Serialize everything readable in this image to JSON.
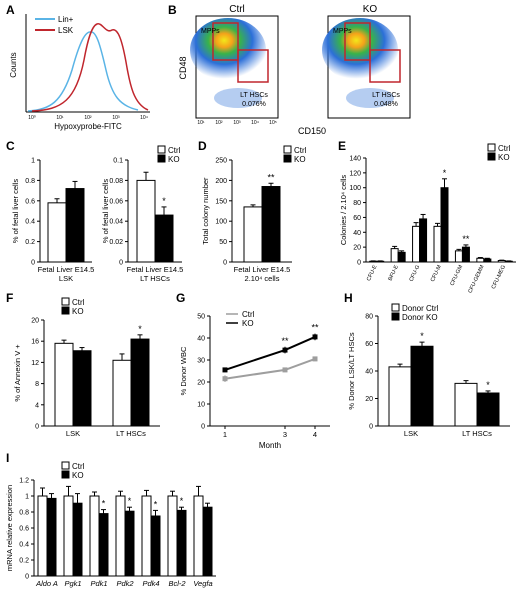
{
  "panels": {
    "A": {
      "letter": "A",
      "legend": [
        "Lin+",
        "LSK"
      ],
      "colors": {
        "Lin+": "#5ab4e6",
        "LSK": "#c0262d"
      },
      "ylabel": "Counts",
      "xlabel": "Hypoxyprobe-FITC",
      "ticks": [
        "10⁰",
        "10¹",
        "10²",
        "10³",
        "10⁴"
      ]
    },
    "B": {
      "letter": "B",
      "plots": [
        {
          "title": "Ctrl",
          "gate_mpp": "MPPs",
          "gate_lt": "LT HSCs",
          "lt_pct": "0.076%"
        },
        {
          "title": "KO",
          "gate_mpp": "MPPs",
          "gate_lt": "LT HSCs",
          "lt_pct": "0.048%"
        }
      ],
      "ylabel": "CD48",
      "xlabel": "CD150",
      "ticks": [
        "10¹",
        "10²",
        "10³",
        "10⁴",
        "10⁵"
      ]
    },
    "C": {
      "letter": "C"
    },
    "D": {
      "letter": "D"
    },
    "E": {
      "letter": "E"
    },
    "F": {
      "letter": "F"
    },
    "G": {
      "letter": "G"
    },
    "H": {
      "letter": "H"
    },
    "I": {
      "letter": "I"
    }
  },
  "chart_data": [
    {
      "id": "C1",
      "type": "bar",
      "categories": [
        "Fetal Liver E14.5"
      ],
      "sublabel": "LSK",
      "series": [
        {
          "name": "Ctrl",
          "values": [
            0.58
          ]
        },
        {
          "name": "KO",
          "values": [
            0.72
          ]
        }
      ],
      "errors": [
        [
          0.04
        ],
        [
          0.07
        ]
      ],
      "ylabel": "% of fetal liver cells",
      "ylim": [
        0,
        1
      ],
      "yticks": [
        "0",
        "0.2",
        "0.4",
        "0.6",
        "0.8",
        "1"
      ]
    },
    {
      "id": "C2",
      "type": "bar",
      "categories": [
        "Fetal Liver E14.5"
      ],
      "sublabel": "LT HSCs",
      "series": [
        {
          "name": "Ctrl",
          "values": [
            0.08
          ]
        },
        {
          "name": "KO",
          "values": [
            0.046
          ]
        }
      ],
      "errors": [
        [
          0.008
        ],
        [
          0.008
        ]
      ],
      "significance": [
        [
          ""
        ],
        [
          "*"
        ]
      ],
      "legend": [
        "Ctrl",
        "KO"
      ],
      "ylabel": "% of fetal liver cells",
      "ylim": [
        0,
        0.1
      ],
      "yticks": [
        "0",
        "0.02",
        "0.04",
        "0.06",
        "0.08",
        "0.1"
      ]
    },
    {
      "id": "D",
      "type": "bar",
      "categories": [
        "Fetal Liver E14.5"
      ],
      "sublabel": "2.10⁴ cells",
      "series": [
        {
          "name": "Ctrl",
          "values": [
            135
          ]
        },
        {
          "name": "KO",
          "values": [
            185
          ]
        }
      ],
      "errors": [
        [
          5
        ],
        [
          8
        ]
      ],
      "significance": [
        [
          ""
        ],
        [
          "**"
        ]
      ],
      "legend": [
        "Ctrl",
        "KO"
      ],
      "ylabel": "Total colony number",
      "ylim": [
        0,
        250
      ],
      "yticks": [
        "0",
        "50",
        "100",
        "150",
        "200",
        "250"
      ]
    },
    {
      "id": "E",
      "type": "bar",
      "categories": [
        "CFU-E",
        "BFU-E",
        "CFU-G",
        "CFU-M",
        "CFU-GM",
        "CFU-GEMM",
        "CFU-MEG"
      ],
      "series": [
        {
          "name": "Ctrl",
          "values": [
            1,
            18,
            48,
            48,
            15,
            5,
            2
          ]
        },
        {
          "name": "KO",
          "values": [
            1,
            13,
            58,
            100,
            20,
            4,
            1
          ]
        }
      ],
      "errors": [
        [
          0.5,
          3,
          5,
          4,
          2,
          1,
          0.5
        ],
        [
          0.5,
          2,
          6,
          12,
          3,
          1,
          0.5
        ]
      ],
      "significance": [
        [
          "",
          "",
          "",
          "",
          "",
          "",
          ""
        ],
        [
          "",
          "",
          "",
          "*",
          "**",
          "",
          ""
        ]
      ],
      "legend": [
        "Ctrl",
        "KO"
      ],
      "ylabel": "Colonies / 2.10⁴ cells",
      "ylim": [
        0,
        140
      ],
      "yticks": [
        "0",
        "20",
        "40",
        "60",
        "80",
        "100",
        "120",
        "140"
      ]
    },
    {
      "id": "F",
      "type": "bar",
      "categories": [
        "LSK",
        "LT HSCs"
      ],
      "series": [
        {
          "name": "Ctrl",
          "values": [
            15.6,
            12.4
          ]
        },
        {
          "name": "KO",
          "values": [
            14.2,
            16.4
          ]
        }
      ],
      "errors": [
        [
          0.6,
          1.2
        ],
        [
          0.6,
          0.8
        ]
      ],
      "significance": [
        [
          "",
          ""
        ],
        [
          "",
          "*"
        ]
      ],
      "legend": [
        "Ctrl",
        "KO"
      ],
      "ylabel": "% of Annexin V +",
      "ylim": [
        0,
        20
      ],
      "yticks": [
        "0",
        "4",
        "8",
        "12",
        "16",
        "20"
      ]
    },
    {
      "id": "G",
      "type": "line",
      "x": [
        1,
        3,
        4
      ],
      "series": [
        {
          "name": "Ctrl",
          "values": [
            21.5,
            25.5,
            30.5
          ],
          "color": "#9e9e9e"
        },
        {
          "name": "KO",
          "values": [
            25.5,
            34.5,
            40.5
          ],
          "color": "#000000"
        }
      ],
      "errors": [
        [
          1.5,
          1,
          1
        ],
        [
          1,
          1.5,
          1.5
        ]
      ],
      "significance": [
        [
          "",
          "",
          ""
        ],
        [
          "",
          "**",
          "**"
        ]
      ],
      "legend": [
        "Ctrl",
        "KO"
      ],
      "xlabel": "Month",
      "xticks": [
        "1",
        "3",
        "4"
      ],
      "ylabel": "% Donor WBC",
      "ylim": [
        0,
        50
      ],
      "yticks": [
        "0",
        "10",
        "20",
        "30",
        "40",
        "50"
      ]
    },
    {
      "id": "H",
      "type": "bar",
      "categories": [
        "LSK",
        "LT HSCs"
      ],
      "series": [
        {
          "name": "Donor Ctrl",
          "values": [
            43,
            31
          ]
        },
        {
          "name": "Donor KO",
          "values": [
            58,
            24
          ]
        }
      ],
      "errors": [
        [
          2,
          2
        ],
        [
          3,
          1.5
        ]
      ],
      "significance": [
        [
          "",
          ""
        ],
        [
          "*",
          "*"
        ]
      ],
      "legend": [
        "Donor Ctrl",
        "Donor KO"
      ],
      "ylabel": "% Donor LSK/LT HSCs",
      "ylim": [
        0,
        80
      ],
      "yticks": [
        "0",
        "20",
        "40",
        "60",
        "80"
      ]
    },
    {
      "id": "I",
      "type": "bar",
      "categories": [
        "Aldo A",
        "Pgk1",
        "Pdk1",
        "Pdk2",
        "Pdk4",
        "Bcl-2",
        "Vegfa"
      ],
      "series": [
        {
          "name": "Ctrl",
          "values": [
            1.0,
            1.0,
            1.0,
            1.0,
            1.0,
            1.0,
            1.0
          ]
        },
        {
          "name": "KO",
          "values": [
            0.97,
            0.91,
            0.78,
            0.81,
            0.75,
            0.82,
            0.86
          ]
        }
      ],
      "errors": [
        [
          0.1,
          0.12,
          0.05,
          0.06,
          0.07,
          0.06,
          0.12
        ],
        [
          0.06,
          0.12,
          0.05,
          0.05,
          0.07,
          0.04,
          0.05
        ]
      ],
      "significance": [
        [
          "",
          "",
          "",
          "",
          "",
          "",
          ""
        ],
        [
          "",
          "",
          "*",
          "*",
          "*",
          "*",
          ""
        ]
      ],
      "legend": [
        "Ctrl",
        "KO"
      ],
      "ylabel": "mRNA relative expression",
      "ylim": [
        0,
        1.2
      ],
      "yticks": [
        "0",
        "0.2",
        "0.4",
        "0.6",
        "0.8",
        "1",
        "1.2"
      ]
    }
  ]
}
